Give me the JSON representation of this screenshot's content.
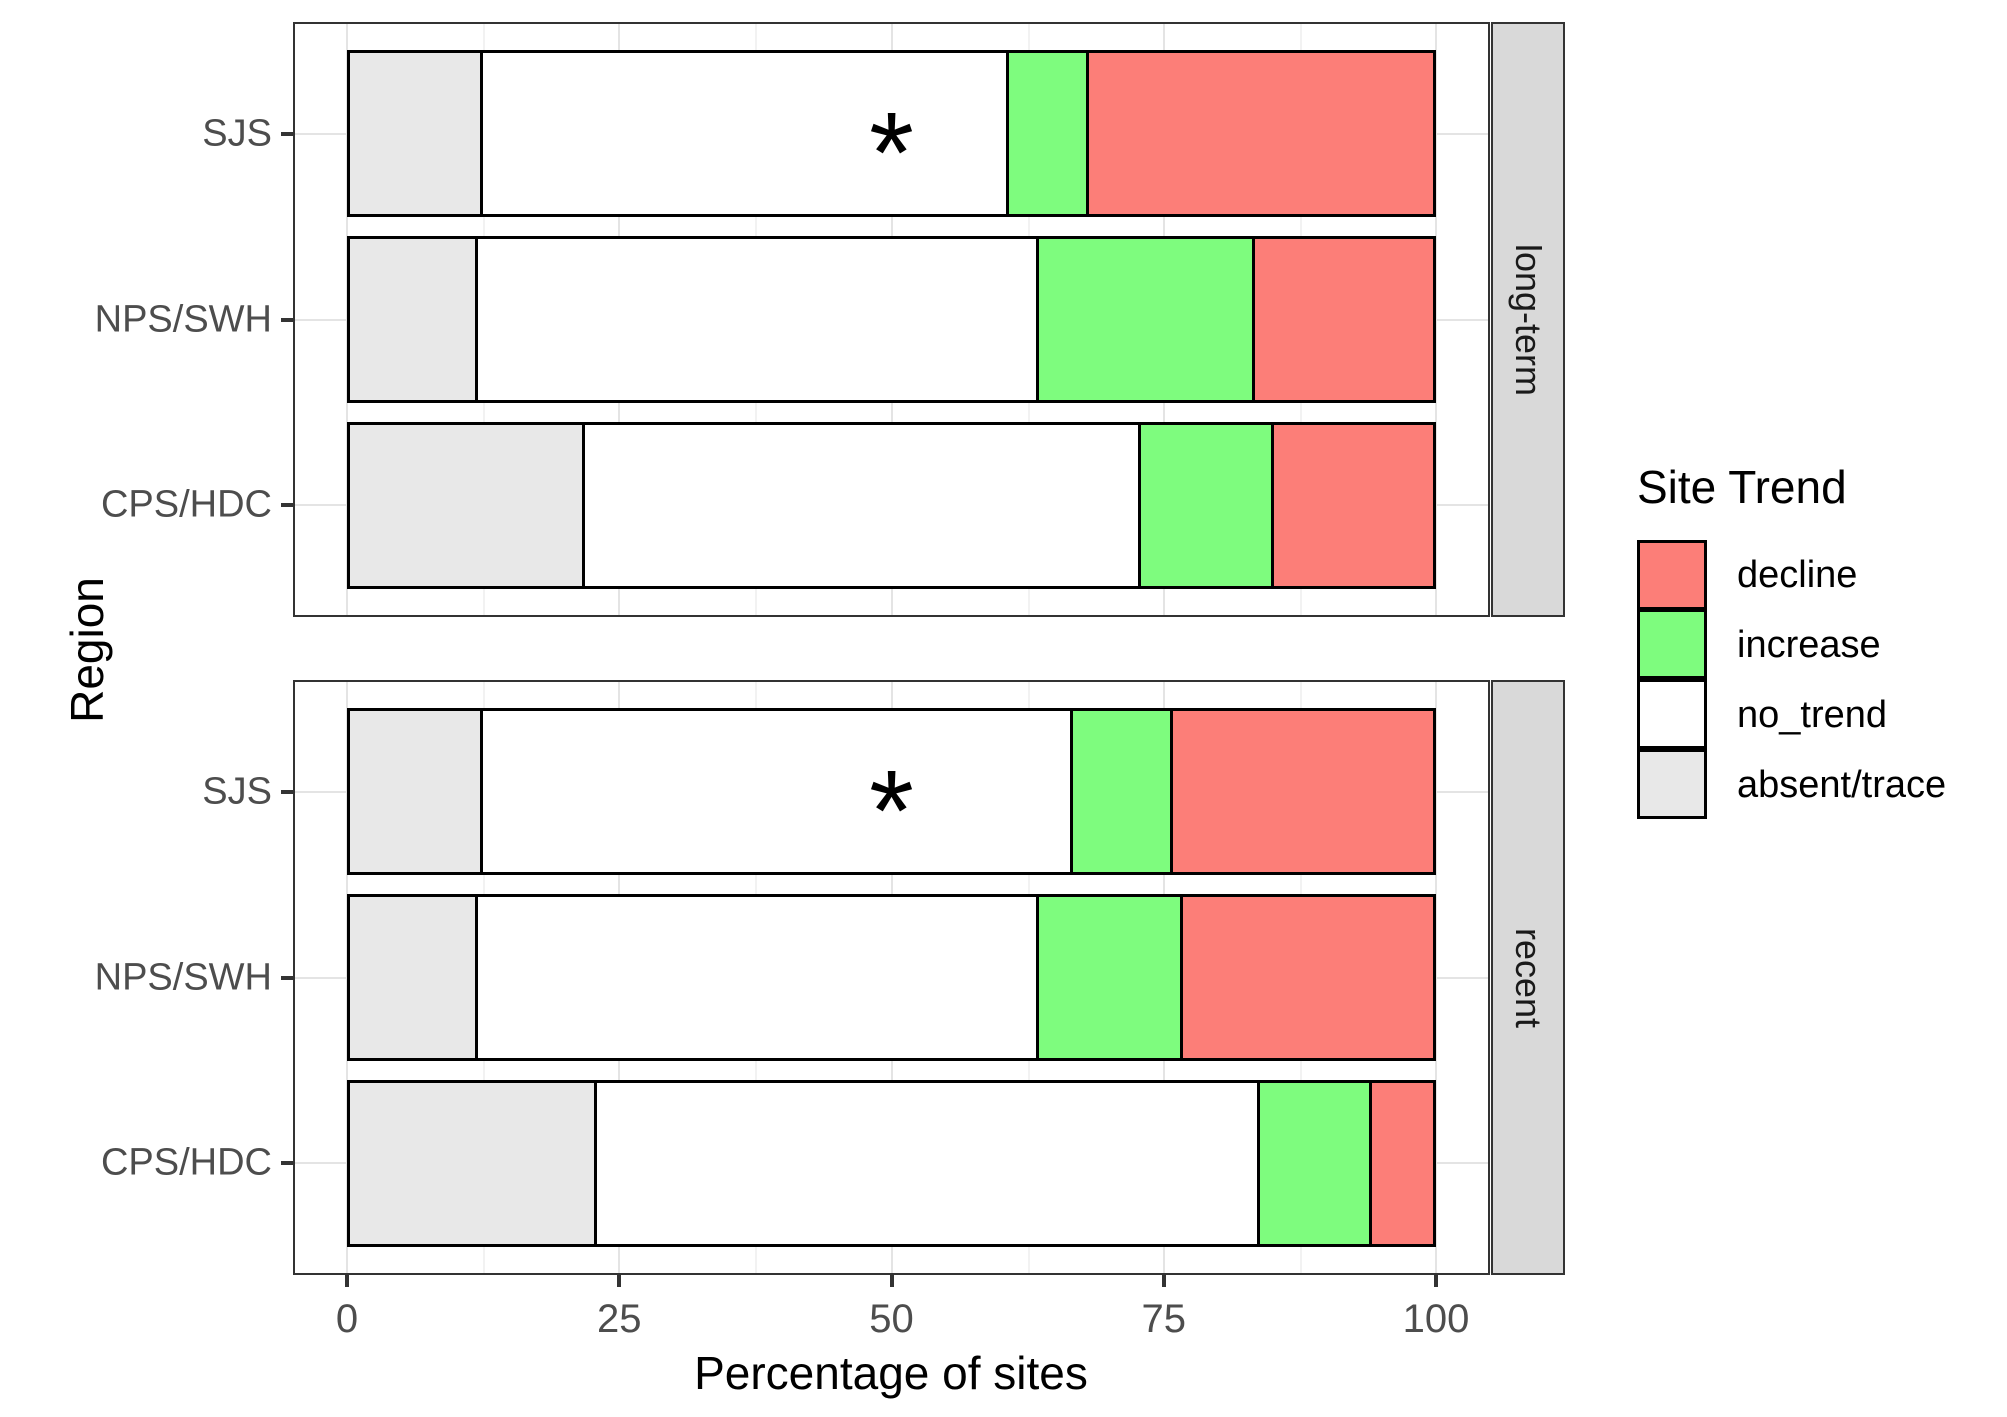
{
  "axes": {
    "y_title": "Region",
    "x_title": "Percentage of sites",
    "x_ticks": [
      "0",
      "25",
      "50",
      "75",
      "100"
    ],
    "x_tick_values": [
      0,
      25,
      50,
      75,
      100
    ],
    "y_categories_top_to_bottom": [
      "SJS",
      "NPS/SWH",
      "CPS/HDC"
    ]
  },
  "legend": {
    "title": "Site Trend",
    "entries": [
      {
        "label": "decline",
        "color": "#FC7E78"
      },
      {
        "label": "increase",
        "color": "#7EFC7E"
      },
      {
        "label": "no_trend",
        "color": "#FFFFFF"
      },
      {
        "label": "absent/trace",
        "color": "#E8E8E8"
      }
    ]
  },
  "chart_data": {
    "type": "bar",
    "orientation": "horizontal",
    "stacked": true,
    "title": "",
    "xlabel": "Percentage of sites",
    "ylabel": "Region",
    "xlim": [
      0,
      100
    ],
    "x_ticks": [
      0,
      25,
      50,
      75,
      100
    ],
    "grid": true,
    "legend_position": "right",
    "stack_order_left_to_right": [
      "absent/trace",
      "no_trend",
      "increase",
      "decline"
    ],
    "colors": {
      "decline": "#FC7E78",
      "increase": "#7EFC7E",
      "no_trend": "#FFFFFF",
      "absent/trace": "#E8E8E8"
    },
    "facets": [
      {
        "label": "long-term",
        "rows": [
          {
            "region": "SJS",
            "annotation": "*",
            "annotation_x": 50,
            "values": {
              "absent/trace": 12.1,
              "no_trend": 48.7,
              "increase": 7.2,
              "decline": 32.0
            }
          },
          {
            "region": "NPS/SWH",
            "values": {
              "absent/trace": 11.6,
              "no_trend": 52.0,
              "increase": 19.8,
              "decline": 16.6
            }
          },
          {
            "region": "CPS/HDC",
            "values": {
              "absent/trace": 21.6,
              "no_trend": 51.5,
              "increase": 12.1,
              "decline": 14.8
            }
          }
        ]
      },
      {
        "label": "recent",
        "rows": [
          {
            "region": "SJS",
            "annotation": "*",
            "annotation_x": 50,
            "values": {
              "absent/trace": 12.1,
              "no_trend": 54.7,
              "increase": 9.0,
              "decline": 24.2
            }
          },
          {
            "region": "NPS/SWH",
            "values": {
              "absent/trace": 11.6,
              "no_trend": 52.0,
              "increase": 13.1,
              "decline": 23.3
            }
          },
          {
            "region": "CPS/HDC",
            "values": {
              "absent/trace": 22.7,
              "no_trend": 61.5,
              "increase": 10.1,
              "decline": 5.7
            }
          }
        ]
      }
    ]
  }
}
